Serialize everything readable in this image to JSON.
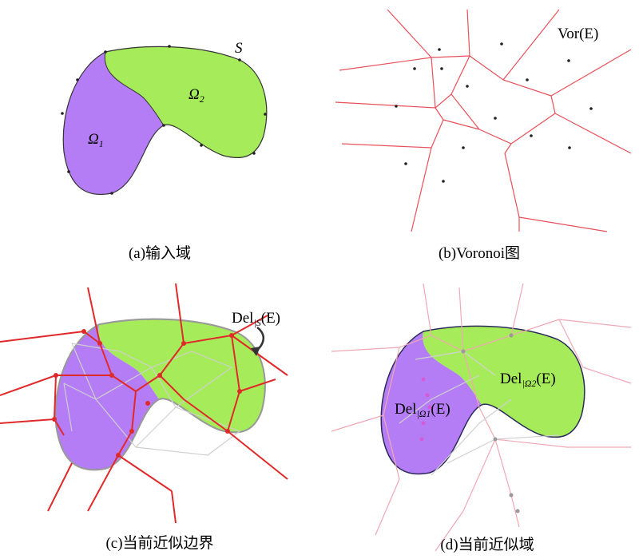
{
  "panels": [
    {
      "caption": "(a)输入域",
      "labels": [
        {
          "main": "S"
        },
        {
          "main": "Ω",
          "sub": "1"
        },
        {
          "main": "Ω",
          "sub": "2"
        }
      ]
    },
    {
      "caption": "(b)Voronoi图",
      "labels": [
        {
          "main": "Vor",
          "tail": "(E)"
        }
      ]
    },
    {
      "caption": "(c)当前近似边界",
      "labels": [
        {
          "main": "Del",
          "sub": "|S",
          "tail": "(E)"
        }
      ]
    },
    {
      "caption": "(d)当前近似域",
      "labels": [
        {
          "main": "Del",
          "sub": "|Ω2",
          "tail": "(E)"
        },
        {
          "main": "Del",
          "sub": "|Ω1",
          "tail": "(E)"
        }
      ]
    }
  ]
}
